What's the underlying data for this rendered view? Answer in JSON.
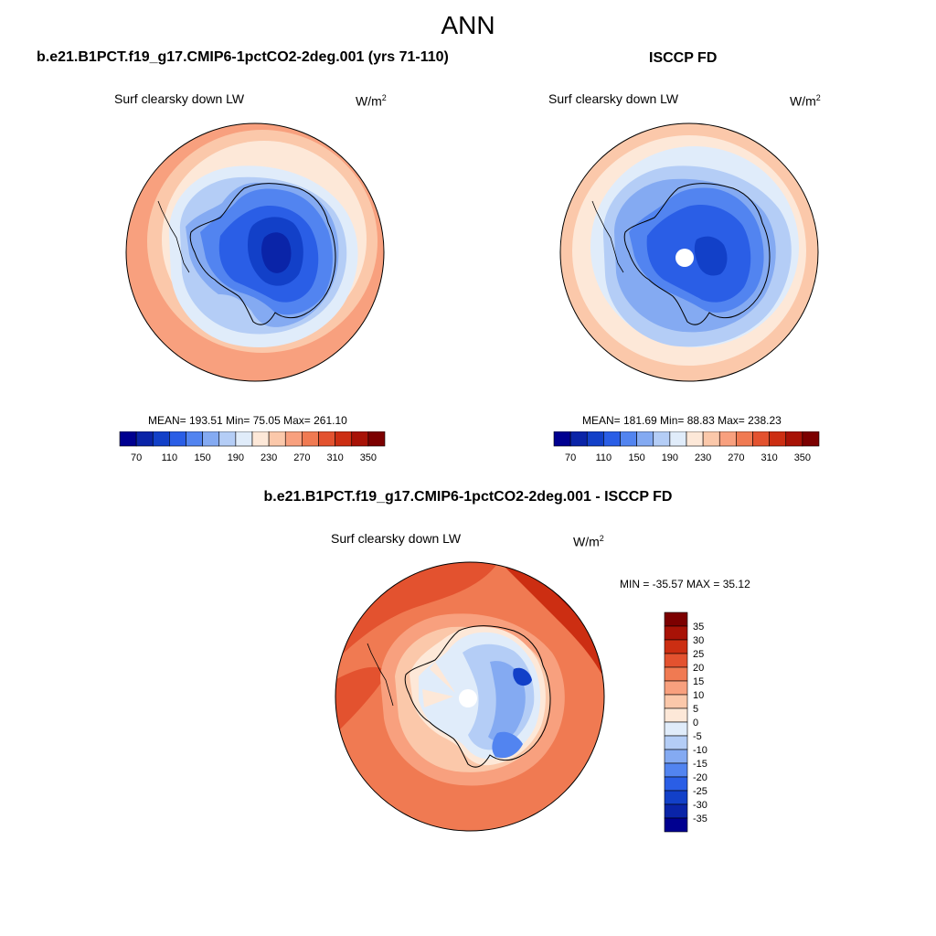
{
  "figure": {
    "title": "ANN",
    "panels": [
      {
        "title": "b.e21.B1PCT.f19_g17.CMIP6-1pctCO2-2deg.001 (yrs 71-110)",
        "variable": "Surf clearsky down LW",
        "units_base": "W/m",
        "units_exp": "2",
        "stats": "MEAN= 193.51  Min=  75.05  Max= 261.10"
      },
      {
        "title": "ISCCP FD",
        "variable": "Surf clearsky down LW",
        "units_base": "W/m",
        "units_exp": "2",
        "stats": "MEAN= 181.69  Min=  88.83  Max= 238.23"
      },
      {
        "title": "b.e21.B1PCT.f19_g17.CMIP6-1pctCO2-2deg.001 - ISCCP FD",
        "variable": "Surf clearsky down LW",
        "units_base": "W/m",
        "units_exp": "2",
        "stats": "MIN = -35.57 MAX =  35.12"
      }
    ]
  },
  "chart_data": [
    {
      "type": "heatmap",
      "projection": "south polar stereographic",
      "title": "b.e21.B1PCT.f19_g17.CMIP6-1pctCO2-2deg.001 (yrs 71-110)",
      "variable": "Surf clearsky down LW",
      "units": "W/m2",
      "mean": 193.51,
      "min": 75.05,
      "max": 261.1,
      "colorbar": {
        "orientation": "horizontal",
        "tick_labels": [
          "70",
          "110",
          "150",
          "190",
          "230",
          "270",
          "310",
          "350"
        ],
        "colors": [
          "#000090",
          "#0a24a8",
          "#1240c8",
          "#2a5ee6",
          "#5284f0",
          "#84aaf2",
          "#b4cdf6",
          "#e0ecfa",
          "#fde8d8",
          "#fbc8aa",
          "#f8a07e",
          "#f07a52",
          "#e3522f",
          "#cc2e12",
          "#a81206",
          "#7c0000"
        ]
      },
      "levels_vs_lat": [
        {
          "lat": -50,
          "value": 260
        },
        {
          "lat": -55,
          "value": 245
        },
        {
          "lat": -60,
          "value": 225
        },
        {
          "lat": -64,
          "value": 205
        },
        {
          "lat": -68,
          "value": 185
        },
        {
          "lat": -72,
          "value": 160
        },
        {
          "lat": -76,
          "value": 140
        },
        {
          "lat": -82,
          "value": 110
        },
        {
          "lat": -88,
          "value": 85
        }
      ]
    },
    {
      "type": "heatmap",
      "projection": "south polar stereographic",
      "title": "ISCCP FD",
      "variable": "Surf clearsky down LW",
      "units": "W/m2",
      "mean": 181.69,
      "min": 88.83,
      "max": 238.23,
      "colorbar": {
        "orientation": "horizontal",
        "tick_labels": [
          "70",
          "110",
          "150",
          "190",
          "230",
          "270",
          "310",
          "350"
        ],
        "colors": [
          "#000090",
          "#0a24a8",
          "#1240c8",
          "#2a5ee6",
          "#5284f0",
          "#84aaf2",
          "#b4cdf6",
          "#e0ecfa",
          "#fde8d8",
          "#fbc8aa",
          "#f8a07e",
          "#f07a52",
          "#e3522f",
          "#cc2e12",
          "#a81206",
          "#7c0000"
        ]
      },
      "levels_vs_lat": [
        {
          "lat": -50,
          "value": 235
        },
        {
          "lat": -56,
          "value": 220
        },
        {
          "lat": -62,
          "value": 200
        },
        {
          "lat": -67,
          "value": 180
        },
        {
          "lat": -72,
          "value": 160
        },
        {
          "lat": -78,
          "value": 140
        },
        {
          "lat": -85,
          "value": 120
        }
      ]
    },
    {
      "type": "heatmap",
      "projection": "south polar stereographic",
      "title": "b.e21.B1PCT.f19_g17.CMIP6-1pctCO2-2deg.001 - ISCCP FD",
      "variable": "Surf clearsky down LW",
      "units": "W/m2",
      "min": -35.57,
      "max": 35.12,
      "colorbar": {
        "orientation": "vertical",
        "tick_labels": [
          "35",
          "30",
          "25",
          "20",
          "15",
          "10",
          "5",
          "0",
          "-5",
          "-10",
          "-15",
          "-20",
          "-25",
          "-30",
          "-35"
        ],
        "colors": [
          "#7c0000",
          "#a81206",
          "#cc2e12",
          "#e3522f",
          "#f07a52",
          "#f8a07e",
          "#fbc8aa",
          "#fde8d8",
          "#e0ecfa",
          "#b4cdf6",
          "#84aaf2",
          "#5284f0",
          "#2a5ee6",
          "#1240c8",
          "#0a24a8",
          "#000090"
        ]
      },
      "levels_vs_lat": [
        {
          "lat": -50,
          "value": 27
        },
        {
          "lat": -58,
          "value": 23
        },
        {
          "lat": -63,
          "value": 15
        },
        {
          "lat": -67,
          "value": 5
        },
        {
          "lat": -72,
          "value": -8
        },
        {
          "lat": -78,
          "value": -18
        },
        {
          "lat": -85,
          "value": -5
        }
      ]
    }
  ]
}
